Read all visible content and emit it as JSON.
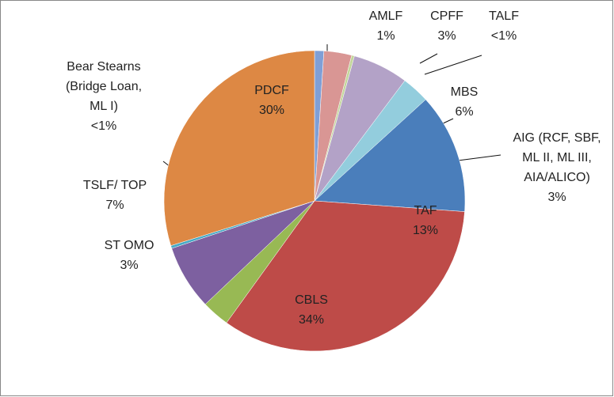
{
  "chart_data": {
    "type": "pie",
    "categories": [
      "AMLF",
      "CPFF",
      "TALF",
      "MBS",
      "AIG (RCF, SBF, ML II, ML III, AIA/ALICO)",
      "TAF",
      "CBLS",
      "ST OMO",
      "TSLF/ TOP",
      "Bear Stearns (Bridge Loan, ML I)",
      "PDCF"
    ],
    "values": [
      1,
      3,
      0.3,
      6,
      3,
      13,
      34,
      3,
      7,
      0.3,
      30
    ],
    "value_labels": [
      "1%",
      "3%",
      "<1%",
      "6%",
      "3%",
      "13%",
      "34%",
      "3%",
      "7%",
      "<1%",
      "30%"
    ],
    "colors": [
      "#7f9fd6",
      "#d99694",
      "#c3d69b",
      "#b3a2c7",
      "#93cddd",
      "#4a7ebb",
      "#be4b48",
      "#98b954",
      "#7d60a0",
      "#46aac5",
      "#dd8844"
    ]
  }
}
